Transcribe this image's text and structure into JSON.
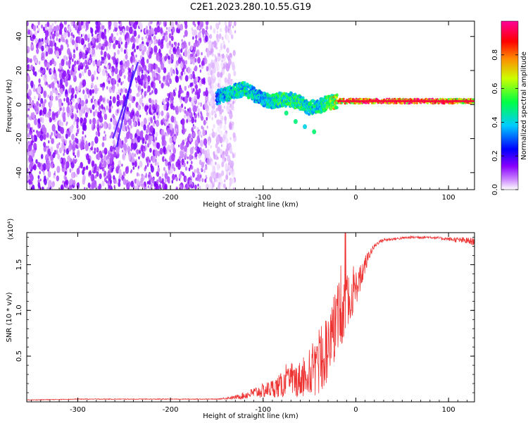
{
  "title": "C2E1.2023.280.10.55.G19",
  "chart_data": [
    {
      "type": "heatmap",
      "xlabel": "Height of straight line (km)",
      "ylabel": "Frequency (Hz)",
      "xlim": [
        -355,
        128
      ],
      "ylim": [
        -50,
        49
      ],
      "x_ticks": [
        -300,
        -200,
        -100,
        0,
        100
      ],
      "y_ticks": [
        -40,
        -20,
        0,
        20,
        40
      ],
      "colorbar": {
        "label": "Normalized spectral amplitude",
        "range": [
          0,
          1
        ],
        "ticks": [
          0.0,
          0.2,
          0.4,
          0.6,
          0.8
        ],
        "colormap": [
          "#ffffff",
          "#9900ff",
          "#0000ff",
          "#00ffff",
          "#00ff00",
          "#ffff00",
          "#ff0000",
          "#ff0099"
        ]
      },
      "noise_region": {
        "x_range": [
          -355,
          -150
        ],
        "freq_range": [
          -50,
          49
        ],
        "typical_amplitude": 0.12
      },
      "signal_track": {
        "x": [
          -150,
          -140,
          -130,
          -120,
          -110,
          -100,
          -90,
          -80,
          -70,
          -60,
          -50,
          -40,
          -30,
          -20,
          -10,
          0,
          20,
          40,
          60,
          80,
          100,
          120,
          128
        ],
        "freq": [
          4,
          6,
          8,
          9,
          6,
          3,
          2,
          3,
          3,
          1,
          -2,
          -1,
          1,
          2,
          2,
          2,
          2,
          2,
          2,
          2,
          2,
          2,
          2
        ],
        "amplitude": [
          0.4,
          0.45,
          0.5,
          0.5,
          0.45,
          0.45,
          0.5,
          0.55,
          0.55,
          0.55,
          0.5,
          0.5,
          0.6,
          0.8,
          0.85,
          0.9,
          0.95,
          0.95,
          0.95,
          0.95,
          0.9,
          0.85,
          0.8
        ]
      },
      "side_branch": {
        "x": [
          -75,
          -65,
          -55,
          -45
        ],
        "freq": [
          -5,
          -10,
          -13,
          -16
        ]
      }
    },
    {
      "type": "line",
      "xlabel": "Height of straight line (km)",
      "ylabel": "SNR (10 * v/v)",
      "y_multiplier": "(x10⁴)",
      "xlim": [
        -355,
        128
      ],
      "ylim": [
        0,
        1.85
      ],
      "x_ticks": [
        -300,
        -200,
        -100,
        0,
        100
      ],
      "y_ticks": [
        0.5,
        1.0,
        1.5
      ],
      "color": "#ee3333",
      "series": [
        {
          "x": [
            -355,
            -300,
            -250,
            -200,
            -150,
            -130,
            -120,
            -110,
            -100,
            -90,
            -80,
            -70,
            -60,
            -50,
            -40,
            -30,
            -25,
            -20,
            -15,
            -10,
            -5,
            0,
            5,
            10,
            15,
            20,
            25,
            30,
            40,
            50,
            60,
            70,
            80,
            90,
            100,
            110,
            120,
            128
          ],
          "y": [
            0.02,
            0.03,
            0.03,
            0.03,
            0.03,
            0.05,
            0.07,
            0.1,
            0.12,
            0.15,
            0.18,
            0.22,
            0.25,
            0.3,
            0.38,
            0.55,
            0.75,
            0.9,
            1.0,
            1.1,
            1.15,
            1.25,
            1.35,
            1.5,
            1.62,
            1.7,
            1.75,
            1.77,
            1.78,
            1.79,
            1.8,
            1.8,
            1.8,
            1.79,
            1.78,
            1.77,
            1.76,
            1.75
          ],
          "noise_amplitude": [
            0.004,
            0.004,
            0.004,
            0.004,
            0.004,
            0.02,
            0.04,
            0.06,
            0.08,
            0.1,
            0.14,
            0.17,
            0.2,
            0.25,
            0.3,
            0.35,
            0.38,
            0.4,
            0.38,
            0.3,
            0.25,
            0.2,
            0.15,
            0.1,
            0.05,
            0.03,
            0.02,
            0.02,
            0.015,
            0.015,
            0.015,
            0.015,
            0.015,
            0.015,
            0.02,
            0.03,
            0.04,
            0.04
          ]
        }
      ]
    }
  ]
}
